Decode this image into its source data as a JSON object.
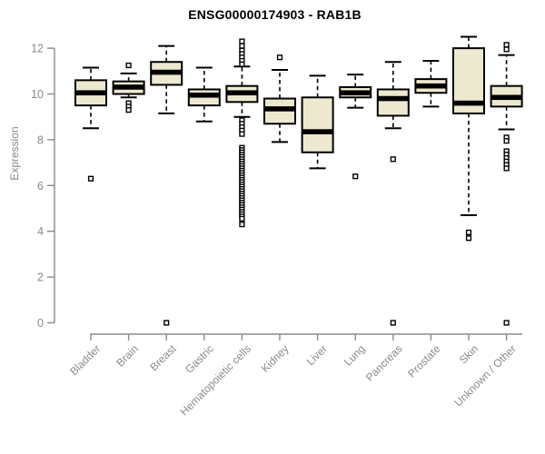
{
  "page": {
    "background": "#ffffff"
  },
  "chart_data": {
    "type": "boxplot",
    "title": "ENSG00000174903 - RAB1B",
    "ylabel": "Expression",
    "xlabel": "",
    "ylim": [
      0,
      12
    ],
    "yticks": [
      0,
      2,
      4,
      6,
      8,
      10,
      12
    ],
    "grid": false,
    "legend": "none",
    "box_fill_color": "#EDE8D0",
    "box_line_color": "#000000",
    "axis_color": "#8a8a8a",
    "title_color": "#000000",
    "categories": [
      "Bladder",
      "Brain",
      "Breast",
      "Gastric",
      "Hematopoietic cells",
      "Kidney",
      "Liver",
      "Lung",
      "Pancreas",
      "Prostate",
      "Skin",
      "Unknown / Other"
    ],
    "series": [
      {
        "name": "Bladder",
        "whisker_low": 8.5,
        "q1": 9.5,
        "median": 10.05,
        "q3": 10.6,
        "whisker_high": 11.15,
        "outliers": [
          6.3
        ]
      },
      {
        "name": "Brain",
        "whisker_low": 9.85,
        "q1": 10.0,
        "median": 10.3,
        "q3": 10.55,
        "whisker_high": 10.9,
        "outliers": [
          11.25,
          9.6,
          9.45,
          9.3
        ]
      },
      {
        "name": "Breast",
        "whisker_low": 9.15,
        "q1": 10.4,
        "median": 10.95,
        "q3": 11.4,
        "whisker_high": 12.1,
        "outliers": [
          0
        ]
      },
      {
        "name": "Gastric",
        "whisker_low": 8.8,
        "q1": 9.5,
        "median": 9.95,
        "q3": 10.2,
        "whisker_high": 11.15,
        "outliers": []
      },
      {
        "name": "Hematopoietic cells",
        "whisker_low": 9.0,
        "q1": 9.65,
        "median": 10.05,
        "q3": 10.35,
        "whisker_high": 11.2,
        "outliers": [
          12.3,
          12.1,
          11.9,
          11.75,
          11.6,
          11.45,
          11.3,
          8.85,
          8.7,
          8.55,
          8.4,
          8.25,
          7.65,
          7.55,
          7.45,
          7.35,
          7.25,
          7.15,
          7.05,
          6.95,
          6.85,
          6.75,
          6.65,
          6.55,
          6.45,
          6.35,
          6.25,
          6.15,
          6.05,
          5.95,
          5.85,
          5.75,
          5.65,
          5.55,
          5.45,
          5.35,
          5.25,
          5.15,
          5.05,
          4.95,
          4.85,
          4.75,
          4.65,
          4.55,
          4.3
        ]
      },
      {
        "name": "Kidney",
        "whisker_low": 7.9,
        "q1": 8.7,
        "median": 9.35,
        "q3": 9.8,
        "whisker_high": 11.05,
        "outliers": [
          11.6
        ]
      },
      {
        "name": "Liver",
        "whisker_low": 6.75,
        "q1": 7.45,
        "median": 8.35,
        "q3": 9.85,
        "whisker_high": 10.8,
        "outliers": []
      },
      {
        "name": "Lung",
        "whisker_low": 9.4,
        "q1": 9.85,
        "median": 10.05,
        "q3": 10.3,
        "whisker_high": 10.85,
        "outliers": [
          6.4
        ]
      },
      {
        "name": "Pancreas",
        "whisker_low": 8.5,
        "q1": 9.05,
        "median": 9.8,
        "q3": 10.2,
        "whisker_high": 11.4,
        "outliers": [
          7.15,
          0
        ]
      },
      {
        "name": "Prostate",
        "whisker_low": 9.45,
        "q1": 10.05,
        "median": 10.35,
        "q3": 10.65,
        "whisker_high": 11.45,
        "outliers": []
      },
      {
        "name": "Skin",
        "whisker_low": 4.7,
        "q1": 9.15,
        "median": 9.6,
        "q3": 12.0,
        "whisker_high": 12.5,
        "outliers": [
          3.95,
          3.7
        ]
      },
      {
        "name": "Unknown / Other",
        "whisker_low": 8.45,
        "q1": 9.45,
        "median": 9.85,
        "q3": 10.35,
        "whisker_high": 11.7,
        "outliers": [
          12.15,
          11.95,
          8.1,
          7.95,
          7.5,
          7.35,
          7.2,
          7.05,
          6.9,
          6.75,
          0
        ]
      }
    ]
  }
}
